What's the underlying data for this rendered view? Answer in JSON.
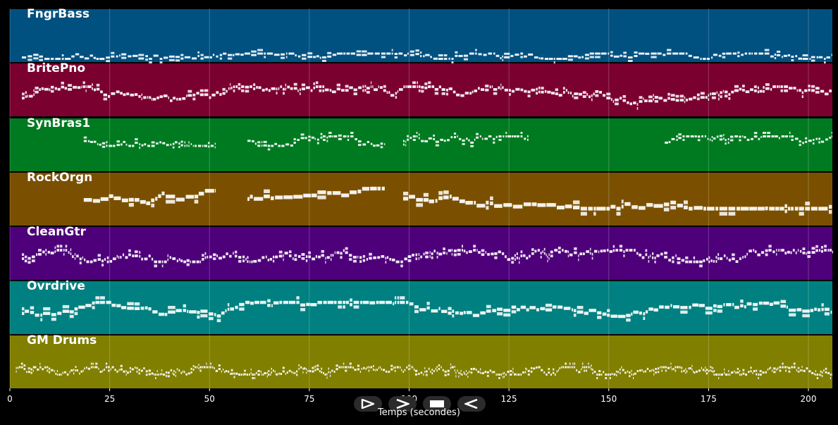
{
  "chart_data": {
    "type": "piano-roll",
    "title": "",
    "xlabel": "Temps (secondes)",
    "ylabel": "",
    "xlim": [
      0,
      206
    ],
    "xticks": [
      0,
      25,
      50,
      75,
      100,
      125,
      150,
      175,
      200
    ],
    "grid": true,
    "tracks": [
      {
        "name": "FngrBass",
        "color": "#005080",
        "segments": [
          [
            3,
            206
          ]
        ],
        "pitch_range": [
          0.06,
          0.16
        ],
        "density": 2.2,
        "note_len": [
          0.4,
          1.6
        ],
        "note_height": 0.04
      },
      {
        "name": "BritePno",
        "color": "#7a0030",
        "segments": [
          [
            3,
            206
          ]
        ],
        "pitch_range": [
          0.22,
          0.56
        ],
        "density": 5,
        "note_len": [
          0.3,
          1.2
        ],
        "note_height": 0.05
      },
      {
        "name": "SynBras1",
        "color": "#007a20",
        "segments": [
          [
            18.5,
            51.5
          ],
          [
            59.5,
            94
          ],
          [
            98.5,
            130
          ],
          [
            164,
            206
          ]
        ],
        "pitch_range": [
          0.48,
          0.66
        ],
        "density": 2.5,
        "note_len": [
          0.3,
          1.0
        ],
        "note_height": 0.04
      },
      {
        "name": "RockOrgn",
        "color": "#7a5000",
        "segments": [
          [
            18.5,
            51.5
          ],
          [
            59.5,
            94
          ],
          [
            98.5,
            206
          ]
        ],
        "pitch_range": [
          0.32,
          0.7
        ],
        "density": 3,
        "note_len": [
          0.6,
          2.5
        ],
        "note_height": 0.07
      },
      {
        "name": "CleanGtr",
        "color": "#4e007a",
        "segments": [
          [
            3,
            206
          ]
        ],
        "pitch_range": [
          0.34,
          0.56
        ],
        "density": 3,
        "note_len": [
          0.3,
          1.0
        ],
        "note_height": 0.05
      },
      {
        "name": "Ovrdrive",
        "color": "#008080",
        "segments": [
          [
            3,
            206
          ]
        ],
        "pitch_range": [
          0.3,
          0.6
        ],
        "density": 3,
        "note_len": [
          0.4,
          2.0
        ],
        "note_height": 0.06
      },
      {
        "name": "GM Drums",
        "color": "#807f00",
        "segments": [
          [
            1.5,
            206
          ]
        ],
        "pitch_range": [
          0.26,
          0.4
        ],
        "density": 6,
        "note_len": [
          0.2,
          0.7
        ],
        "note_height": 0.04
      }
    ]
  },
  "controls": [
    {
      "label": "play",
      "icon": "play-icon"
    },
    {
      "label": "forward",
      "icon": "forward-icon"
    },
    {
      "label": "stop",
      "icon": "stop-icon"
    },
    {
      "label": "back",
      "icon": "back-icon"
    }
  ]
}
